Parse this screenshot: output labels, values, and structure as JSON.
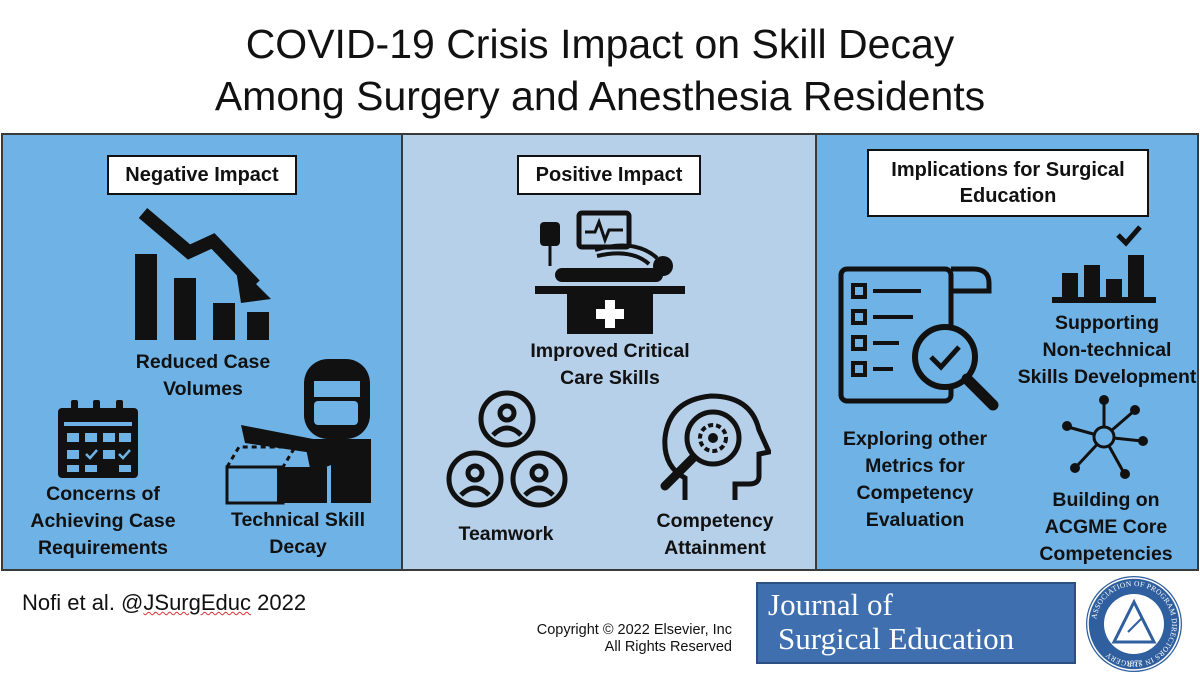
{
  "title": {
    "line1": "COVID-19 Crisis Impact on Skill Decay",
    "line2": "Among Surgery and Anesthesia Residents"
  },
  "negative": {
    "header": "Negative Impact",
    "reduced_case": "Reduced Case\nVolumes",
    "concerns": "Concerns of\nAchieving Case\nRequirements",
    "technical": "Technical Skill\nDecay"
  },
  "positive": {
    "header": "Positive Impact",
    "critical_care": "Improved Critical\nCare Skills",
    "teamwork": "Teamwork",
    "competency": "Competency\nAttainment"
  },
  "implications": {
    "header": "Implications for\nSurgical Education",
    "supporting": "Supporting\nNon-technical\nSkills Development",
    "exploring": "Exploring other\nMetrics for\nCompetency\nEvaluation",
    "building": "Building on\nACGME Core\nCompetencies"
  },
  "footer": {
    "cite_author": "Nofi et al. @",
    "cite_handle": "JSurgEduc",
    "cite_year": " 2022",
    "copyright_line1": "Copyright © 2022  Elsevier, Inc",
    "copyright_line2": "All Rights Reserved",
    "journal_line1": "Journal of",
    "journal_line2": "Surgical Education",
    "seal_text": "ASSOCIATION OF PROGRAM DIRECTORS IN SURGERY",
    "seal_year": "1977"
  },
  "colors": {
    "panel_blue": "#6fb3e6",
    "panel_light": "#b7d0ea",
    "journal_blue": "#3f6fae"
  }
}
